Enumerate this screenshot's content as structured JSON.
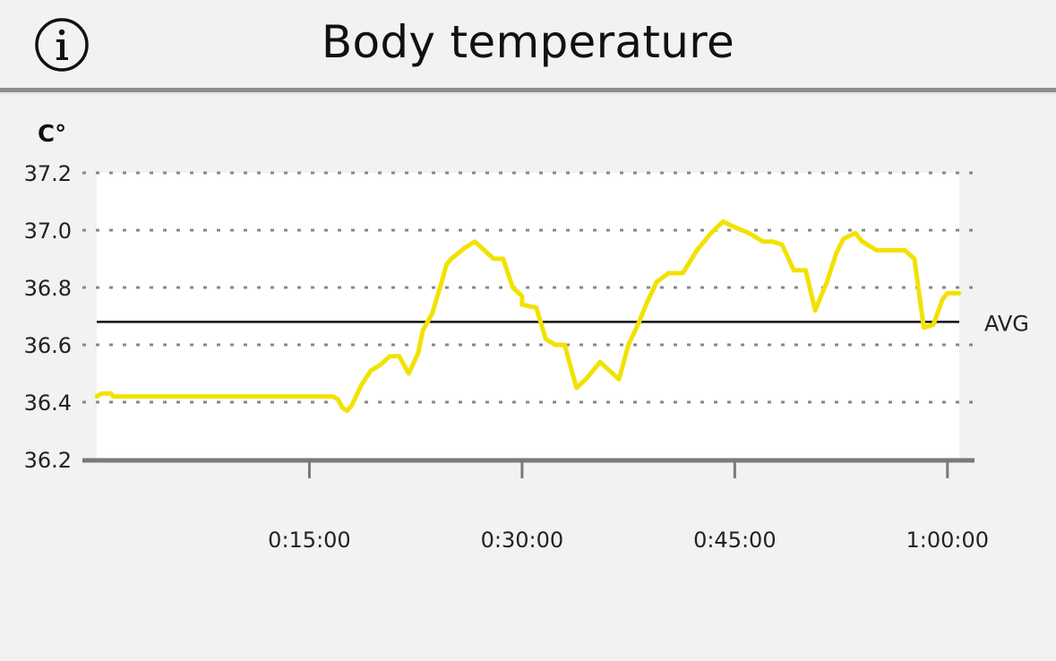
{
  "header": {
    "title": "Body temperature",
    "info_icon": "info-icon"
  },
  "chart_data": {
    "type": "line",
    "ylabel": "C°",
    "ylim": [
      36.2,
      37.2
    ],
    "y_ticks": [
      "37.2",
      "37.0",
      "36.8",
      "36.6",
      "36.4",
      "36.2"
    ],
    "x_ticks": [
      {
        "label": "0:15:00",
        "seconds": 900
      },
      {
        "label": "0:30:00",
        "seconds": 1800
      },
      {
        "label": "0:45:00",
        "seconds": 2700
      },
      {
        "label": "1:00:00",
        "seconds": 3600
      }
    ],
    "xlim_seconds": [
      0,
      3650
    ],
    "grid": "horizontal-dotted",
    "avg": {
      "label": "AVG",
      "value": 36.68
    },
    "line_color": "#f2e200",
    "series": [
      {
        "x_seconds": [
          0,
          20,
          60,
          70,
          1000,
          1020,
          1040,
          1060,
          1080,
          1120,
          1160,
          1200,
          1240,
          1280,
          1320,
          1360,
          1380,
          1420,
          1460,
          1480,
          1500,
          1560,
          1600,
          1640,
          1680,
          1720,
          1760,
          1800,
          1800,
          1860,
          1900,
          1940,
          1980,
          2030,
          2070,
          2130,
          2170,
          2210,
          2250,
          2290,
          2330,
          2370,
          2420,
          2480,
          2540,
          2600,
          2650,
          2700,
          2760,
          2820,
          2860,
          2900,
          2950,
          3000,
          3040,
          3090,
          3130,
          3160,
          3210,
          3240,
          3300,
          3380,
          3420,
          3460,
          3500,
          3540,
          3580,
          3600,
          3630,
          3640,
          3650
        ],
        "y": [
          36.42,
          36.43,
          36.43,
          36.42,
          36.42,
          36.41,
          36.38,
          36.37,
          36.39,
          36.46,
          36.51,
          36.53,
          36.56,
          36.56,
          36.5,
          36.57,
          36.65,
          36.71,
          36.82,
          36.88,
          36.9,
          36.94,
          36.96,
          36.93,
          36.9,
          36.9,
          36.8,
          36.77,
          36.74,
          36.73,
          36.62,
          36.6,
          36.6,
          36.45,
          36.48,
          36.54,
          36.51,
          36.48,
          36.6,
          36.67,
          36.75,
          36.82,
          36.85,
          36.85,
          36.93,
          36.99,
          37.03,
          37.01,
          36.99,
          36.96,
          36.96,
          36.95,
          36.86,
          36.86,
          36.72,
          36.82,
          36.92,
          36.97,
          36.99,
          36.96,
          36.93,
          36.93,
          36.93,
          36.9,
          36.66,
          36.67,
          36.76,
          36.78,
          36.78,
          36.78,
          36.78
        ]
      }
    ]
  }
}
